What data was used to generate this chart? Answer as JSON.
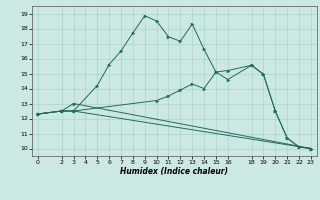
{
  "title": "",
  "xlabel": "Humidex (Indice chaleur)",
  "bg_color": "#cce8e2",
  "grid_color": "#aad4cc",
  "line_color": "#1e6b5e",
  "xlim": [
    -0.5,
    23.5
  ],
  "ylim": [
    9.5,
    19.5
  ],
  "xticks": [
    0,
    2,
    3,
    4,
    5,
    6,
    7,
    8,
    9,
    10,
    11,
    12,
    13,
    14,
    15,
    16,
    18,
    19,
    20,
    21,
    22,
    23
  ],
  "yticks": [
    10,
    11,
    12,
    13,
    14,
    15,
    16,
    17,
    18,
    19
  ],
  "lines": [
    {
      "x": [
        0,
        2,
        3,
        5,
        6,
        7,
        8,
        9,
        10,
        11,
        12,
        13,
        14,
        15,
        16,
        18,
        19,
        20,
        21,
        22,
        23
      ],
      "y": [
        12.3,
        12.5,
        12.5,
        14.2,
        15.6,
        16.5,
        17.7,
        18.85,
        18.5,
        17.45,
        17.15,
        18.3,
        16.6,
        15.1,
        15.2,
        15.55,
        14.95,
        12.5,
        10.7,
        10.1,
        10.0
      ]
    },
    {
      "x": [
        0,
        2,
        3,
        10,
        11,
        12,
        13,
        14,
        15,
        16,
        18,
        19,
        20,
        21,
        22,
        23
      ],
      "y": [
        12.3,
        12.5,
        12.5,
        13.2,
        13.5,
        13.9,
        14.3,
        14.0,
        15.1,
        14.6,
        15.55,
        14.95,
        12.5,
        10.7,
        10.1,
        10.0
      ]
    },
    {
      "x": [
        0,
        2,
        3,
        23
      ],
      "y": [
        12.3,
        12.5,
        13.0,
        10.0
      ]
    },
    {
      "x": [
        0,
        2,
        3,
        23
      ],
      "y": [
        12.3,
        12.5,
        12.5,
        10.0
      ]
    }
  ],
  "xlabel_fontsize": 5.5,
  "tick_fontsize": 4.5
}
